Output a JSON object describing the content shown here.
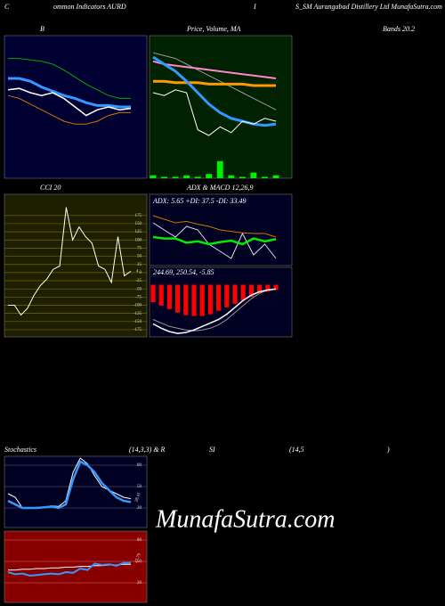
{
  "header": [
    "C",
    "ommon Indicators AURD",
    "I",
    "S_SM Aurangabad Distillery Ltd MunafaSutra.com"
  ],
  "watermark": "MunafaSutra.com",
  "chart_data": [
    {
      "type": "line",
      "title": [
        "B",
        "Bands 20.2"
      ],
      "background": "#000033",
      "ylim": [
        0,
        100
      ],
      "series": [
        {
          "color": "#00aa00",
          "width": 1,
          "style": "line",
          "values": [
            84,
            84,
            83,
            82,
            80,
            76,
            71,
            66,
            62,
            58,
            56,
            56
          ]
        },
        {
          "color": "#cc7700",
          "width": 1,
          "style": "line",
          "values": [
            58,
            56,
            52,
            48,
            44,
            40,
            38,
            38,
            40,
            44,
            46,
            46
          ]
        },
        {
          "color": "#3399ff",
          "width": 3,
          "style": "line",
          "values": [
            70,
            70,
            68,
            64,
            61,
            58,
            56,
            53,
            51,
            51,
            50,
            50
          ]
        },
        {
          "color": "#ffffff",
          "width": 1.5,
          "style": "line",
          "values": [
            62,
            63,
            60,
            58,
            60,
            56,
            50,
            44,
            48,
            50,
            48,
            49
          ]
        }
      ]
    },
    {
      "type": "line",
      "title": [
        "Price,  Volume,  MA"
      ],
      "background": "#002200",
      "ylim": [
        0,
        100
      ],
      "series": [
        {
          "color": "#00ee00",
          "width": 1,
          "style": "bar",
          "values": [
            2,
            1,
            1,
            2,
            1,
            3,
            12,
            2,
            1,
            4,
            1,
            2
          ]
        },
        {
          "color": "#999999",
          "width": 1,
          "style": "line",
          "values": [
            88,
            86,
            84,
            80,
            76,
            72,
            68,
            64,
            60,
            56,
            52,
            48
          ]
        },
        {
          "color": "#ff88cc",
          "width": 2,
          "style": "line",
          "values": [
            82,
            80,
            79,
            78,
            77,
            76,
            75,
            74,
            73,
            72,
            71,
            70
          ]
        },
        {
          "color": "#ff9900",
          "width": 3,
          "style": "line",
          "values": [
            68,
            68,
            67,
            67,
            67,
            66,
            66,
            66,
            66,
            65,
            65,
            65
          ]
        },
        {
          "color": "#3399ff",
          "width": 3,
          "style": "line",
          "values": [
            85,
            80,
            75,
            68,
            60,
            52,
            46,
            42,
            40,
            38,
            37,
            38
          ]
        },
        {
          "color": "#ffffff",
          "width": 1,
          "style": "line",
          "values": [
            60,
            58,
            62,
            60,
            34,
            30,
            36,
            32,
            40,
            38,
            42,
            40
          ]
        }
      ]
    },
    {
      "type": "line",
      "title": [
        "CCI 20"
      ],
      "background": "#1e1e00",
      "ylim": [
        -197,
        240
      ],
      "yticks": [
        175,
        150,
        125,
        100,
        75,
        50,
        25,
        0,
        -25,
        -50,
        -75,
        -100,
        -125,
        -150,
        -175
      ],
      "grid": true,
      "grid_color": "#6b6b00",
      "series": [
        {
          "color": "#ffffff",
          "width": 1,
          "style": "line",
          "last_value_label": true,
          "values": [
            -100,
            -100,
            -130,
            -110,
            -70,
            -40,
            -20,
            10,
            20,
            200,
            100,
            140,
            110,
            90,
            20,
            10,
            -30,
            110,
            -10,
            4
          ]
        }
      ]
    },
    {
      "type": "line",
      "title": [
        "ADX  & MACD 12,26,9",
        "ADX: 5.65 +DI: 37.5 -DI: 33.49"
      ],
      "background": "#000022",
      "ylim": [
        0,
        100
      ],
      "series": [
        {
          "color": "#cc7700",
          "width": 1,
          "style": "line",
          "values": [
            70,
            65,
            60,
            62,
            58,
            55,
            50,
            48,
            46,
            45,
            45,
            40
          ]
        },
        {
          "color": "#dddddd",
          "width": 1,
          "style": "line",
          "values": [
            60,
            50,
            40,
            55,
            50,
            30,
            20,
            10,
            45,
            15,
            30,
            10
          ]
        },
        {
          "color": "#00ee00",
          "width": 2.5,
          "style": "line",
          "values": [
            40,
            38,
            38,
            32,
            34,
            30,
            33,
            35,
            30,
            38,
            34,
            37
          ]
        }
      ]
    },
    {
      "type": "line",
      "title": [
        "244.69, 250.54, -5.85"
      ],
      "background": "#000022",
      "ylim": [
        -60,
        20
      ],
      "series": [
        {
          "color": "#ff0000",
          "width": 1,
          "style": "bar",
          "values": [
            -20,
            -24,
            -28,
            -32,
            -35,
            -36,
            -36,
            -34,
            -30,
            -26,
            -22,
            -18,
            -14,
            -10,
            -8,
            -6
          ]
        },
        {
          "color": "#999999",
          "width": 1,
          "style": "line",
          "values": [
            -40,
            -44,
            -48,
            -50,
            -52,
            -53,
            -52,
            -50,
            -46,
            -40,
            -32,
            -24,
            -16,
            -10,
            -6,
            -5
          ]
        },
        {
          "color": "#ffffff",
          "width": 1.5,
          "style": "line",
          "values": [
            -45,
            -50,
            -54,
            -56,
            -55,
            -52,
            -48,
            -44,
            -40,
            -34,
            -26,
            -18,
            -12,
            -8,
            -6,
            -5
          ]
        }
      ]
    },
    {
      "type": "line",
      "title": [
        "Stochastics",
        "(14,3,3) & R",
        "SI",
        "(14,5",
        ")"
      ],
      "background": "#000022",
      "ylim": [
        -7.5,
        92.5
      ],
      "yticks": [
        80,
        50,
        20
      ],
      "grid": true,
      "grid_color": "#444466",
      "series": [
        {
          "color": "#ffffff",
          "width": 1,
          "style": "line",
          "values": [
            40,
            35,
            20,
            20,
            21,
            20,
            23,
            22,
            30,
            70,
            90,
            82,
            65,
            50,
            45,
            40,
            35,
            33
          ]
        },
        {
          "color": "#3399ff",
          "width": 2.5,
          "style": "line",
          "last_value_label": true,
          "values": [
            30,
            25,
            20,
            20,
            20,
            21,
            22,
            20,
            25,
            60,
            85,
            80,
            70,
            55,
            45,
            35,
            30,
            28.41
          ]
        }
      ]
    },
    {
      "type": "line",
      "title": [],
      "background": "#880000",
      "ylim": [
        -7.5,
        92.5
      ],
      "yticks": [
        80,
        50,
        20
      ],
      "grid": true,
      "grid_color": "#bb4444",
      "series": [
        {
          "color": "#ffffff",
          "width": 1,
          "style": "line",
          "values": [
            38,
            38,
            39,
            39,
            40,
            40,
            41,
            41,
            42,
            42,
            43,
            43,
            44,
            44,
            45,
            45,
            46,
            46
          ]
        },
        {
          "color": "#3399ff",
          "width": 2,
          "style": "line",
          "last_value_label": true,
          "values": [
            35,
            32,
            33,
            30,
            31,
            32,
            33,
            32,
            35,
            34,
            40,
            38,
            47,
            45,
            46,
            44,
            48,
            47.79
          ]
        }
      ]
    }
  ]
}
